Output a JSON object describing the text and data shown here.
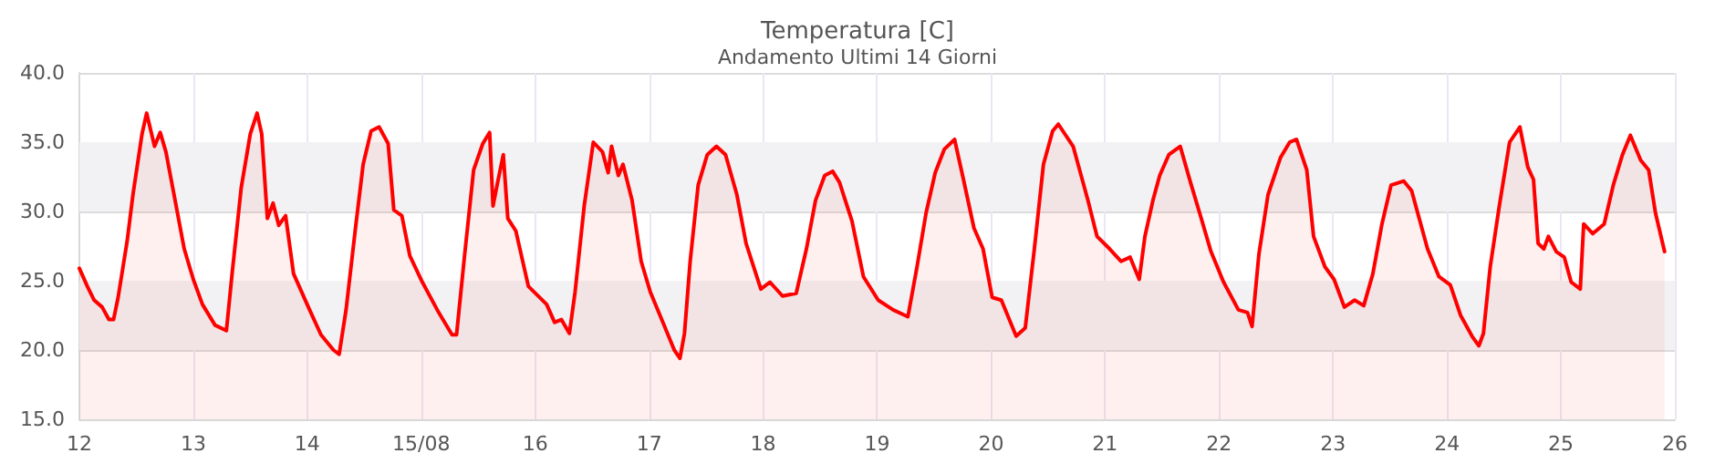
{
  "chart_data": {
    "type": "area",
    "title": "Temperatura [C]",
    "subtitle": "Andamento Ultimi 14 Giorni",
    "xlim": [
      "--08-12",
      "--08-26"
    ],
    "xticks": [
      {
        "value": "--08-12",
        "label": "12"
      },
      {
        "value": "--08-13",
        "label": "13"
      },
      {
        "value": "--08-14",
        "label": "14"
      },
      {
        "value": "--08-15",
        "label": "15/08"
      },
      {
        "value": "--08-16",
        "label": "16"
      },
      {
        "value": "--08-17",
        "label": "17"
      },
      {
        "value": "--08-18",
        "label": "18"
      },
      {
        "value": "--08-19",
        "label": "19"
      },
      {
        "value": "--08-20",
        "label": "20"
      },
      {
        "value": "--08-21",
        "label": "21"
      },
      {
        "value": "--08-22",
        "label": "22"
      },
      {
        "value": "--08-23",
        "label": "23"
      },
      {
        "value": "--08-24",
        "label": "24"
      },
      {
        "value": "--08-25",
        "label": "25"
      },
      {
        "value": "--08-26",
        "label": "26"
      }
    ],
    "ylim": [
      15,
      40
    ],
    "yticks": [
      {
        "value": 15,
        "label": "15.0"
      },
      {
        "value": 20,
        "label": "20.0"
      },
      {
        "value": 25,
        "label": "25.0"
      },
      {
        "value": 30,
        "label": "30.0"
      },
      {
        "value": 35,
        "label": "35.0"
      },
      {
        "value": 40,
        "label": "40.0"
      }
    ],
    "grid": true,
    "marker": "none",
    "line_style": "solid",
    "bands": [
      {
        "axis": "y",
        "from": 20,
        "to": 25,
        "color": "#f2f2f4"
      },
      {
        "axis": "y",
        "from": 30,
        "to": 35,
        "color": "#f2f2f4"
      }
    ],
    "series": [
      {
        "color": "#ff0000",
        "x": [
          "--08-12T00:00",
          "--08-12T01:41",
          "--08-12T03:07",
          "--08-12T04:48",
          "--08-12T06:14",
          "--08-12T07:12",
          "--08-12T08:10",
          "--08-12T10:05",
          "--08-12T11:17",
          "--08-12T13:12",
          "--08-12T14:10",
          "--08-12T15:50",
          "--08-12T17:02",
          "--08-12T18:14",
          "--08-12T20:10",
          "--08-12T22:05",
          "--08-13T00:00",
          "--08-13T01:55",
          "--08-13T04:34",
          "--08-13T06:58",
          "--08-13T08:10",
          "--08-13T10:05",
          "--08-13T12:00",
          "--08-13T13:26",
          "--08-13T14:24",
          "--08-13T15:36",
          "--08-13T16:48",
          "--08-13T18:00",
          "--08-13T19:26",
          "--08-13T21:07",
          "--08-14T00:29",
          "--08-14T02:53",
          "--08-14T05:31",
          "--08-14T06:43",
          "--08-14T08:10",
          "--08-14T10:05",
          "--08-14T11:46",
          "--08-14T13:26",
          "--08-14T15:07",
          "--08-14T17:02",
          "--08-14T18:14",
          "--08-14T19:55",
          "--08-14T21:36",
          "--08-15T00:14",
          "--08-15T03:22",
          "--08-15T06:29",
          "--08-15T07:26",
          "--08-15T09:07",
          "--08-15T11:02",
          "--08-15T12:58",
          "--08-15T14:24",
          "--08-15T15:07",
          "--08-15T16:05",
          "--08-15T17:17",
          "--08-15T18:14",
          "--08-15T19:55",
          "--08-15T22:34",
          "--08-16T02:24",
          "--08-16T04:05",
          "--08-16T05:31",
          "--08-16T07:12",
          "--08-16T08:24",
          "--08-16T10:19",
          "--08-16T12:14",
          "--08-16T14:10",
          "--08-16T15:22",
          "--08-16T16:05",
          "--08-16T17:31",
          "--08-16T18:29",
          "--08-16T20:24",
          "--08-16T22:19",
          "--08-17T00:14",
          "--08-17T02:53",
          "--08-17T05:17",
          "--08-17T06:29",
          "--08-17T07:26",
          "--08-17T08:38",
          "--08-17T10:19",
          "--08-17T12:14",
          "--08-17T14:10",
          "--08-17T16:05",
          "--08-17T18:29",
          "--08-17T20:24",
          "--08-17T23:31",
          "--08-18T01:26",
          "--08-18T04:05",
          "--08-18T06:58",
          "--08-18T09:07",
          "--08-18T11:02",
          "--08-18T12:58",
          "--08-18T14:38",
          "--08-18T16:05",
          "--08-18T18:43",
          "--08-18T21:07",
          "--08-19T00:14",
          "--08-19T03:22",
          "--08-19T06:29",
          "--08-19T08:24",
          "--08-19T10:19",
          "--08-19T12:14",
          "--08-19T14:10",
          "--08-19T16:19",
          "--08-19T18:00",
          "--08-19T20:24",
          "--08-19T22:19",
          "--08-20T00:14",
          "--08-20T02:10",
          "--08-20T05:17",
          "--08-20T07:12",
          "--08-20T09:07",
          "--08-20T11:02",
          "--08-20T12:58",
          "--08-20T14:10",
          "--08-20T17:17",
          "--08-20T20:24",
          "--08-20T22:19",
          "--08-21T00:58",
          "--08-21T03:22",
          "--08-21T05:17",
          "--08-21T07:12",
          "--08-21T08:24",
          "--08-21T10:05",
          "--08-21T11:31",
          "--08-21T13:26",
          "--08-21T15:50",
          "--08-21T18:00",
          "--08-21T19:55",
          "--08-21T22:19",
          "--08-22T00:58",
          "--08-22T04:05",
          "--08-22T06:00",
          "--08-22T06:58",
          "--08-22T08:24",
          "--08-22T10:19",
          "--08-22T12:58",
          "--08-22T14:53",
          "--08-22T16:19",
          "--08-22T18:29",
          "--08-22T19:55",
          "--08-22T22:19",
          "--08-23T00:14",
          "--08-23T02:24",
          "--08-23T04:34",
          "--08-23T06:29",
          "--08-23T08:24",
          "--08-23T10:19",
          "--08-23T12:14",
          "--08-23T14:53",
          "--08-23T16:34",
          "--08-23T19:55",
          "--08-23T22:19",
          "--08-24T00:43",
          "--08-24T02:53",
          "--08-24T05:17",
          "--08-24T06:43",
          "--08-24T07:41",
          "--08-24T09:07",
          "--08-24T11:02",
          "--08-24T13:12",
          "--08-24T15:22",
          "--08-24T17:02",
          "--08-24T18:14",
          "--08-24T19:12",
          "--08-24T20:24",
          "--08-24T21:22",
          "--08-24T23:02",
          "--08-25T00:43",
          "--08-25T02:10",
          "--08-25T04:05",
          "--08-25T04:48",
          "--08-25T06:43",
          "--08-25T09:07",
          "--08-25T11:02",
          "--08-25T12:58",
          "--08-25T14:38",
          "--08-25T16:48",
          "--08-25T18:29",
          "--08-25T19:55",
          "--08-25T21:50"
        ],
        "values": [
          25.9,
          24.6,
          23.6,
          23.1,
          22.2,
          22.2,
          23.8,
          27.9,
          31.2,
          35.6,
          37.1,
          34.7,
          35.7,
          34.3,
          30.8,
          27.3,
          25.1,
          23.3,
          21.8,
          21.4,
          25.5,
          31.7,
          35.6,
          37.1,
          35.6,
          29.5,
          30.6,
          29.0,
          29.7,
          25.5,
          22.9,
          21.1,
          20.0,
          19.7,
          22.9,
          28.6,
          33.4,
          35.8,
          36.1,
          34.9,
          30.1,
          29.7,
          26.8,
          24.9,
          22.9,
          21.1,
          21.1,
          26.8,
          33.0,
          34.9,
          35.7,
          30.4,
          32.1,
          34.1,
          29.5,
          28.6,
          24.6,
          23.3,
          22.0,
          22.2,
          21.2,
          24.2,
          30.4,
          35.0,
          34.3,
          32.8,
          34.7,
          32.6,
          33.4,
          30.8,
          26.4,
          24.2,
          22.0,
          20.0,
          19.4,
          21.2,
          26.4,
          31.9,
          34.1,
          34.7,
          34.1,
          31.2,
          27.7,
          24.4,
          24.9,
          23.9,
          24.1,
          27.3,
          30.8,
          32.6,
          32.9,
          32.1,
          29.3,
          25.3,
          23.6,
          22.9,
          22.4,
          26.0,
          29.9,
          32.8,
          34.5,
          35.2,
          32.6,
          28.8,
          27.3,
          23.8,
          23.6,
          21.0,
          21.6,
          27.3,
          33.4,
          35.8,
          36.3,
          34.7,
          30.8,
          28.2,
          27.3,
          26.4,
          26.7,
          25.1,
          28.2,
          30.8,
          32.6,
          34.1,
          34.7,
          32.1,
          29.9,
          27.1,
          24.9,
          22.9,
          22.7,
          21.7,
          26.9,
          31.2,
          33.9,
          35.0,
          35.2,
          33.0,
          28.2,
          26.0,
          25.1,
          23.1,
          23.6,
          23.2,
          25.5,
          29.1,
          31.9,
          32.2,
          31.5,
          27.3,
          25.3,
          24.7,
          22.5,
          21.0,
          20.3,
          21.2,
          26.0,
          30.4,
          35.0,
          36.1,
          33.2,
          32.3,
          27.7,
          27.3,
          28.2,
          27.1,
          26.7,
          24.9,
          24.4,
          29.1,
          28.4,
          29.1,
          31.9,
          34.1,
          35.5,
          33.7,
          33.0,
          29.9,
          27.1
        ]
      }
    ]
  }
}
